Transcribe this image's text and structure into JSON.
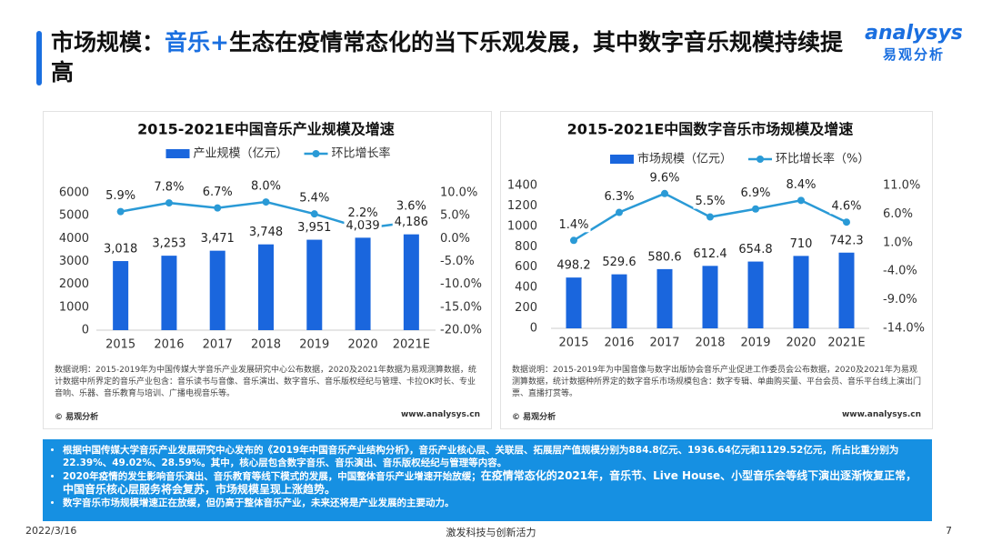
{
  "header": {
    "title": [
      "市场规模：",
      "音乐+",
      "生态在疫情常态化的当下乐观发展，其中数字音乐规模持续提高"
    ],
    "logo": "analysys",
    "logo_sub": "易观分析"
  },
  "chart_data": [
    {
      "type": "combo",
      "title": "2015-2021E中国音乐产业规模及增速",
      "categories": [
        "2015",
        "2016",
        "2017",
        "2018",
        "2019",
        "2020",
        "2021E"
      ],
      "series": [
        {
          "name": "产业规模（亿元）",
          "type": "bar",
          "color": "#1a66dd",
          "values": [
            3018,
            3253,
            3471,
            3748,
            3951,
            4039,
            4186
          ],
          "value_labels": [
            "3,018",
            "3,253",
            "3,471",
            "3,748",
            "3,951",
            "4,039",
            "4,186"
          ]
        },
        {
          "name": "环比增长率",
          "type": "line",
          "axis": "y2",
          "color": "#2a9ad6",
          "values": [
            5.9,
            7.8,
            6.7,
            8.0,
            5.4,
            2.2,
            3.6
          ],
          "value_labels": [
            "5.9%",
            "7.8%",
            "6.7%",
            "8.0%",
            "5.4%",
            "2.2%",
            "3.6%"
          ]
        }
      ],
      "ylim": [
        0,
        6000
      ],
      "yticks": [
        0,
        1000,
        2000,
        3000,
        4000,
        5000,
        6000
      ],
      "y2lim": [
        -20,
        10
      ],
      "y2ticks": [
        {
          "value": -20,
          "label": "-20.0%"
        },
        {
          "value": -15,
          "label": "-15.0%"
        },
        {
          "value": -10,
          "label": "-10.0%"
        },
        {
          "value": -5,
          "label": "-5.0%"
        },
        {
          "value": 0,
          "label": "0.0%"
        },
        {
          "value": 5,
          "label": "5.0%"
        },
        {
          "value": 10,
          "label": "10.0%"
        }
      ],
      "legend": "top",
      "grid": false
    },
    {
      "type": "combo",
      "title": "2015-2021E中国数字音乐市场规模及增速",
      "categories": [
        "2015",
        "2016",
        "2017",
        "2018",
        "2019",
        "2020",
        "2021E"
      ],
      "series": [
        {
          "name": "市场规模（亿元）",
          "type": "bar",
          "color": "#1a66dd",
          "values": [
            498.2,
            529.6,
            580.6,
            612.4,
            654.8,
            710,
            742.3
          ]
        },
        {
          "name": "环比增长率（%）",
          "type": "line",
          "axis": "y2",
          "color": "#2a9ad6",
          "values": [
            1.4,
            6.3,
            9.6,
            5.5,
            6.9,
            8.4,
            4.6
          ],
          "value_labels": [
            "1.4%",
            "6.3%",
            "9.6%",
            "5.5%",
            "6.9%",
            "8.4%",
            "4.6%"
          ]
        }
      ],
      "ylim": [
        0,
        1400
      ],
      "yticks": [
        0,
        200,
        400,
        600,
        800,
        1000,
        1200,
        1400
      ],
      "y2lim": [
        -14,
        11
      ],
      "y2ticks": [
        {
          "value": -14,
          "label": "-14.0%"
        },
        {
          "value": -9,
          "label": "-9.0%"
        },
        {
          "value": -4,
          "label": "-4.0%"
        },
        {
          "value": 1,
          "label": "1.0%"
        },
        {
          "value": 6,
          "label": "6.0%"
        },
        {
          "value": 11,
          "label": "11.0%"
        }
      ],
      "legend": "top",
      "grid": false
    }
  ],
  "notes": [
    {
      "text": "数据说明：2015-2019年为中国传媒大学音乐产业发展研究中心公布数据，2020及2021年数据为易观测算数据，统计数据中所界定的音乐产业包含：音乐读书与音像、音乐演出、数字音乐、音乐版权经纪与管理、卡拉OK时长、专业音响、乐器、音乐教育与培训、广播电视音乐等。",
      "source": "© 易观分析",
      "url": "www.analysys.cn"
    },
    {
      "text": "数据说明：2015-2019年为中国音像与数字出版协会音乐产业促进工作委员会公布数据，2020及2021年为易观测算数据，统计数据种所界定的数字音乐市场规模包含：数字专辑、单曲购买量、平台会员、音乐平台线上演出门票、直播打赏等。",
      "source": "© 易观分析",
      "url": "www.analysys.cn"
    }
  ],
  "summary": [
    [
      {
        "text": "根据中国传媒大学音乐产业发展研究中心发布的《2019年中国音乐产业结构分析》，音乐产业核心层、关联层、拓展层产值规模分别为884.8亿元、1936.64亿元和1129.52亿元，所占比重分别为22.39%、49.02%、28.59%。其中，核心层包含数字音乐、音乐演出、音乐版权经纪与管理等内容。",
        "bold": false
      }
    ],
    [
      {
        "text": "2020年疫情的发生影响音乐演出、音乐教育等线下模式的发展，中国整体音乐产业增速开始放缓；",
        "bold": false
      },
      {
        "text": "在疫情常态化的2021年，音乐节、Live House、小型音乐会等线下演出逐渐恢复正常，中国音乐核心层服务将会复苏，市场规模呈现上涨趋势。",
        "bold": true
      }
    ],
    [
      {
        "text": "数字音乐市场规模增速正在放缓，但仍高于整体音乐产业，未来还将是产业发展的主要动力。",
        "bold": false
      }
    ]
  ],
  "footer": {
    "date": "2022/3/16",
    "slogan": "激发科技与创新活力",
    "page": "7"
  }
}
